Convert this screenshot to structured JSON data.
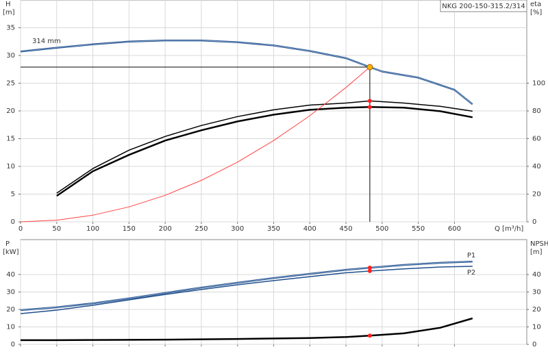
{
  "chart_data": [
    {
      "type": "line",
      "title": "NKG 200-150-315.2/314",
      "x_label": "Q [m³/h]",
      "y_label": "H",
      "y_unit": "[m]",
      "y2_label": "eta",
      "y2_unit": "[%]",
      "xlim": [
        0,
        700
      ],
      "xticks": [
        0,
        50,
        100,
        150,
        200,
        250,
        300,
        350,
        400,
        450,
        500,
        550,
        600
      ],
      "ylim": [
        0,
        40
      ],
      "yticks": [
        0,
        5,
        10,
        15,
        20,
        25,
        30,
        35
      ],
      "y2lim": [
        0,
        160
      ],
      "y2ticks": [
        0,
        20,
        40,
        60,
        80,
        100
      ],
      "grid": true,
      "xtick_labels": true,
      "duty_point": {
        "x": 483,
        "y": 27.9,
        "color": "#ffb000"
      },
      "series": [
        {
          "name": "314 mm",
          "color": "#1f4e8c",
          "width": 2.5,
          "x": [
            0,
            50,
            100,
            150,
            200,
            250,
            300,
            350,
            400,
            450,
            483,
            500,
            550,
            600,
            625
          ],
          "values": [
            30.7,
            31.4,
            32.0,
            32.5,
            32.7,
            32.7,
            32.4,
            31.8,
            30.8,
            29.5,
            27.9,
            27.1,
            26.0,
            23.8,
            21.2
          ]
        },
        {
          "color": "#000000",
          "width": 1.5,
          "axis": "y2",
          "point_color": "#ff2020",
          "x": [
            50,
            100,
            150,
            200,
            250,
            300,
            350,
            400,
            450,
            483,
            530,
            580,
            625
          ],
          "values": [
            20.7,
            38.4,
            51.7,
            61.6,
            69.5,
            75.9,
            80.8,
            84.2,
            85.7,
            87.2,
            85.7,
            83.3,
            79.8
          ]
        },
        {
          "color": "#000000",
          "width": 2.5,
          "axis": "y2",
          "point_color": "#ff2020",
          "x": [
            50,
            100,
            150,
            200,
            250,
            300,
            350,
            400,
            450,
            483,
            530,
            580,
            625
          ],
          "values": [
            18.7,
            36.5,
            48.3,
            58.6,
            66.0,
            72.4,
            77.3,
            80.8,
            82.3,
            82.8,
            82.3,
            79.8,
            75.4
          ]
        },
        {
          "color": "#ff4040",
          "width": 1,
          "x": [
            0,
            50,
            100,
            150,
            200,
            250,
            300,
            350,
            400,
            450,
            483
          ],
          "values": [
            0,
            0.3,
            1.2,
            2.69,
            4.78,
            7.47,
            10.76,
            14.65,
            19.13,
            24.22,
            27.9
          ]
        }
      ]
    },
    {
      "type": "line",
      "y_label": "P",
      "y_unit": "[kW]",
      "y2_label": "NPSH",
      "y2_unit": "[m]",
      "xlim": [
        0,
        700
      ],
      "xticks": [
        0,
        50,
        100,
        150,
        200,
        250,
        300,
        350,
        400,
        450,
        500,
        550,
        600
      ],
      "ylim": [
        0,
        60
      ],
      "yticks": [
        0,
        10,
        20,
        30,
        40
      ],
      "y2lim": [
        0,
        60
      ],
      "y2ticks": [
        0,
        10,
        20,
        30,
        40
      ],
      "grid": true,
      "xtick_labels": false,
      "duty_x": 483,
      "series": [
        {
          "name": "P1",
          "color": "#1f4e8c",
          "width": 2.5,
          "point_color": "#ff2020",
          "x": [
            0,
            50,
            100,
            150,
            200,
            250,
            300,
            350,
            400,
            450,
            483,
            530,
            580,
            625
          ],
          "values": [
            19.6,
            21.2,
            23.5,
            26.3,
            29.4,
            32.5,
            35.3,
            38.0,
            40.4,
            42.7,
            43.9,
            45.5,
            46.7,
            47.4
          ]
        },
        {
          "name": "P2",
          "color": "#1f4e8c",
          "width": 1.5,
          "point_color": "#ff2020",
          "x": [
            0,
            50,
            100,
            150,
            200,
            250,
            300,
            350,
            400,
            450,
            483,
            530,
            580,
            625
          ],
          "values": [
            17.6,
            19.6,
            22.4,
            25.5,
            28.6,
            31.4,
            34.1,
            36.5,
            38.8,
            41.0,
            42.0,
            43.2,
            44.3,
            44.7
          ]
        },
        {
          "color": "#000000",
          "width": 2.5,
          "axis": "y2",
          "point_color": "#ff2020",
          "x": [
            0,
            50,
            100,
            200,
            300,
            400,
            450,
            483,
            530,
            580,
            625
          ],
          "values": [
            2.4,
            2.4,
            2.5,
            2.7,
            3.1,
            3.6,
            4.2,
            5.0,
            6.3,
            9.5,
            14.9
          ]
        }
      ]
    }
  ]
}
